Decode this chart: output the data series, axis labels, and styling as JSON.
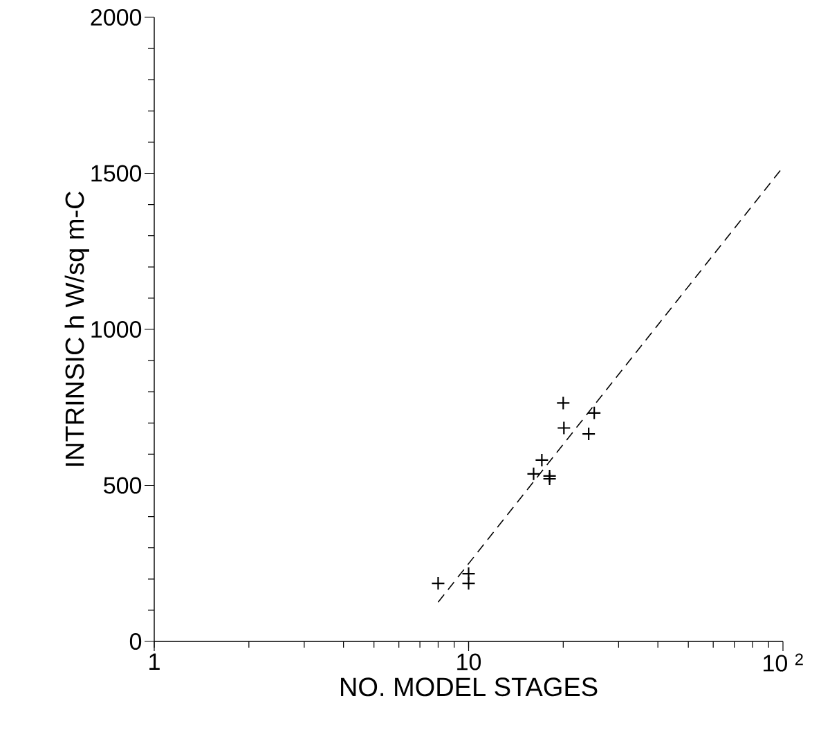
{
  "chart_data": {
    "type": "scatter",
    "xlabel": "NO. MODEL STAGES",
    "ylabel": "INTRINSIC h   W/sq m-C",
    "log": "x",
    "xlim": [
      1,
      100
    ],
    "ylim": [
      0,
      2000
    ],
    "xticks": [
      1,
      10,
      {
        "value": 100,
        "label": "10 $^{2}$"
      }
    ],
    "yticks": [
      0,
      500,
      1000,
      1500,
      2000
    ],
    "series": [
      {
        "marker": "cross",
        "color": "#000000",
        "x": [
          8.0,
          10.0,
          10.0,
          16.1,
          17.1,
          18.1,
          18.1,
          20.1,
          20.0,
          24.1,
          25.1
        ],
        "values": [
          186,
          217,
          186,
          537,
          581,
          530,
          521,
          684,
          764,
          665,
          732
        ]
      },
      {
        "type": "line",
        "marker": "none",
        "line_style": "dashed",
        "color": "#000000",
        "x": [
          8,
          100
        ],
        "values": [
          126,
          1520
        ]
      }
    ]
  }
}
